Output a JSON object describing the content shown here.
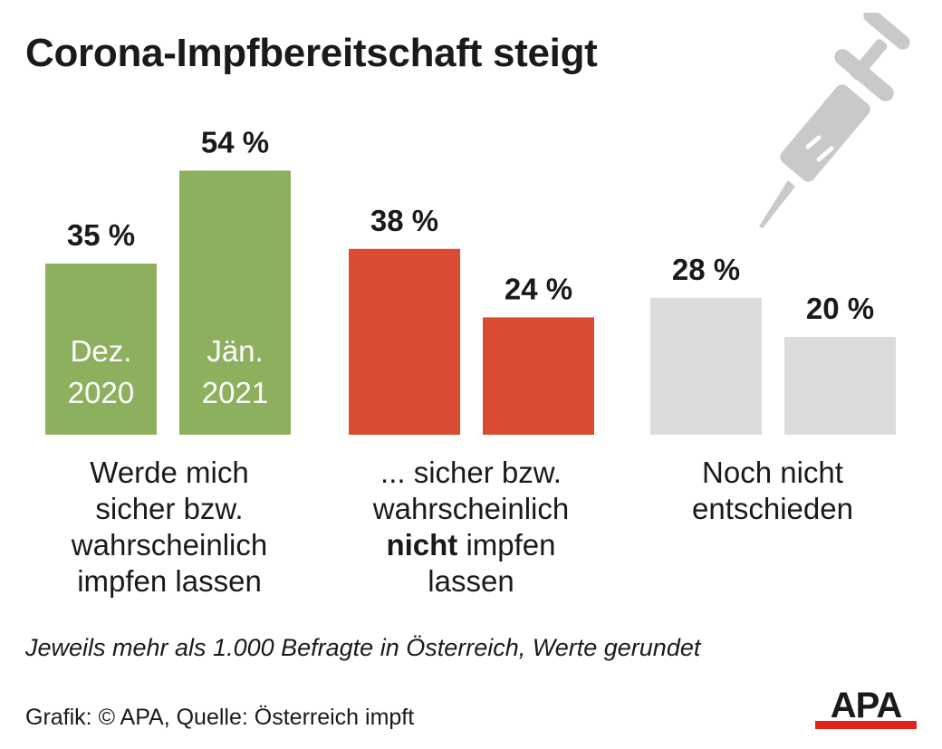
{
  "title": "Corona-Impfbereitschaft steigt",
  "chart_data": {
    "type": "bar",
    "title": "Corona-Impfbereitschaft steigt",
    "unit": "%",
    "ylim": [
      0,
      60
    ],
    "groups": [
      {
        "label_lines": [
          "Werde mich",
          "sicher bzw.",
          "wahrscheinlich",
          "impfen lassen"
        ],
        "color": "#8db05f",
        "bars": [
          {
            "period_lines": [
              "Dez.",
              "2020"
            ],
            "value": 35,
            "value_label": "35 %"
          },
          {
            "period_lines": [
              "Jän.",
              "2021"
            ],
            "value": 54,
            "value_label": "54 %"
          }
        ]
      },
      {
        "label_lines": [
          "... sicher bzw.",
          "wahrscheinlich",
          "nicht|| impfen",
          "lassen"
        ],
        "color": "#da4c32",
        "bars": [
          {
            "period_lines": [],
            "value": 38,
            "value_label": "38 %"
          },
          {
            "period_lines": [],
            "value": 24,
            "value_label": "24 %"
          }
        ]
      },
      {
        "label_lines": [
          "Noch nicht",
          "entschieden"
        ],
        "color": "#dcdcdc",
        "bars": [
          {
            "period_lines": [],
            "value": 28,
            "value_label": "28 %"
          },
          {
            "period_lines": [],
            "value": 20,
            "value_label": "20 %"
          }
        ]
      }
    ]
  },
  "note": "Jeweils mehr als 1.000 Befragte in Österreich, Werte gerundet",
  "credit": "Grafik: © APA, Quelle: Österreich impft",
  "logo": {
    "text": "APA"
  },
  "icons": {
    "syringe": "syringe-icon"
  }
}
